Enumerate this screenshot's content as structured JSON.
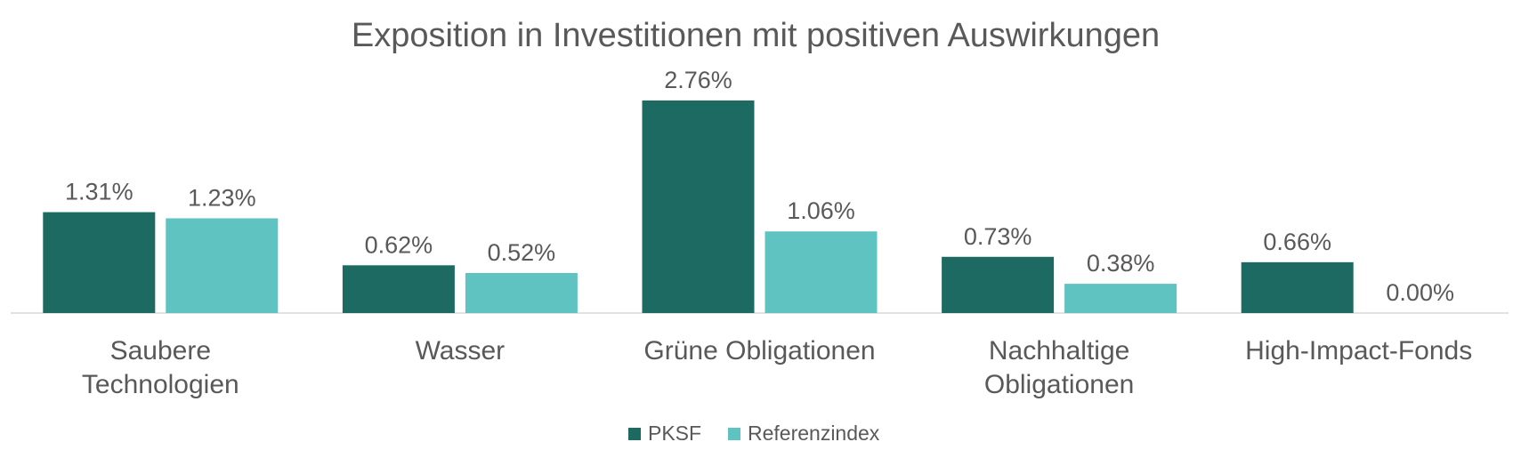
{
  "chart_data": {
    "type": "bar",
    "title": "Exposition in Investitionen mit positiven Auswirkungen",
    "categories": [
      [
        "Saubere",
        "Technologien"
      ],
      [
        "Wasser"
      ],
      [
        "Grüne Obligationen"
      ],
      [
        "Nachhaltige",
        "Obligationen"
      ],
      [
        "High-Impact-Fonds"
      ]
    ],
    "series": [
      {
        "name": "PKSF",
        "color": "#1d6a63",
        "values": [
          1.31,
          0.62,
          2.76,
          0.73,
          0.66
        ],
        "labels": [
          "1.31%",
          "0.62%",
          "2.76%",
          "0.73%",
          "0.66%"
        ]
      },
      {
        "name": "Referenzindex",
        "color": "#5fc3c2",
        "values": [
          1.23,
          0.52,
          1.06,
          0.38,
          0.0
        ],
        "labels": [
          "1.23%",
          "0.52%",
          "1.06%",
          "0.38%",
          "0.00%"
        ]
      }
    ],
    "ylim": [
      0,
      2.76
    ],
    "grid": false,
    "legend_position": "bottom"
  }
}
